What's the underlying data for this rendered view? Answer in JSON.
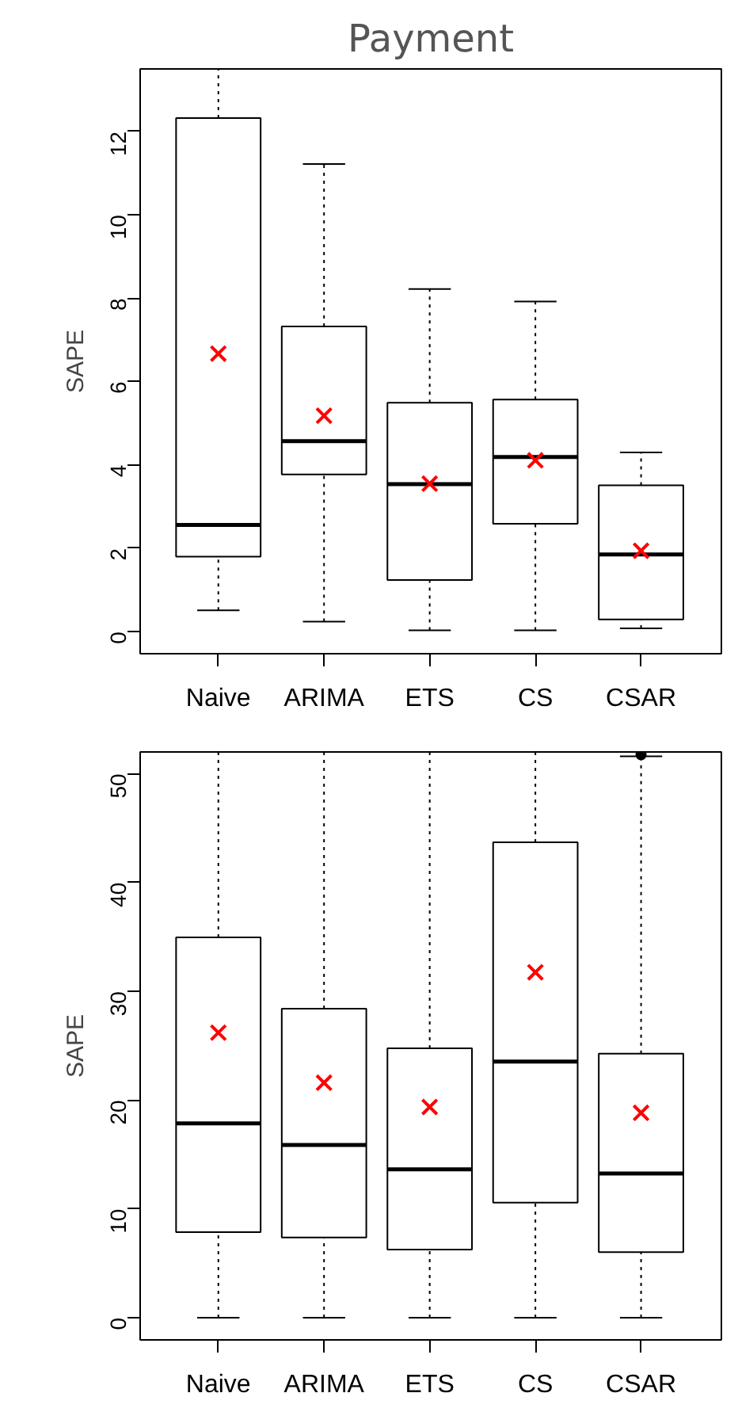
{
  "chart_data": [
    {
      "type": "box",
      "title": "Payment",
      "ylabel": "SAPE",
      "categories": [
        "Naive",
        "ARIMA",
        "ETS",
        "CS",
        "CSAR"
      ],
      "boxes": [
        {
          "low": 0.51,
          "q1": 1.8,
          "median": 2.56,
          "q3": 12.32,
          "high": 13.5,
          "mean": 6.67
        },
        {
          "low": 0.24,
          "q1": 3.77,
          "median": 4.57,
          "q3": 7.32,
          "high": 11.22,
          "mean": 5.18
        },
        {
          "low": 0.03,
          "q1": 1.24,
          "median": 3.54,
          "q3": 5.49,
          "high": 8.22,
          "mean": 3.55
        },
        {
          "low": 0.03,
          "q1": 2.59,
          "median": 4.19,
          "q3": 5.57,
          "high": 7.92,
          "mean": 4.11
        },
        {
          "low": 0.08,
          "q1": 0.29,
          "median": 1.85,
          "q3": 3.51,
          "high": 4.3,
          "mean": 1.94
        }
      ],
      "ylim": [
        -0.53,
        13.5
      ],
      "yticks": [
        0,
        2,
        4,
        6,
        8,
        10,
        12
      ],
      "grid": false
    },
    {
      "type": "box",
      "ylabel": "SAPE",
      "categories": [
        "Naive",
        "ARIMA",
        "ETS",
        "CS",
        "CSAR"
      ],
      "boxes": [
        {
          "low": 0,
          "q1": 7.86,
          "median": 17.86,
          "q3": 34.95,
          "high": 52,
          "mean": 26.2
        },
        {
          "low": 0,
          "q1": 7.38,
          "median": 15.87,
          "q3": 28.4,
          "high": 52,
          "mean": 21.6
        },
        {
          "low": 0,
          "q1": 6.26,
          "median": 13.64,
          "q3": 24.76,
          "high": 52,
          "mean": 19.37
        },
        {
          "low": 0,
          "q1": 10.58,
          "median": 23.54,
          "q3": 43.7,
          "high": 52,
          "mean": 31.75
        },
        {
          "low": 0,
          "q1": 6.02,
          "median": 13.25,
          "q3": 24.27,
          "high": 51.6,
          "mean": 18.83,
          "outliers": [
            51.75
          ]
        }
      ],
      "ylim": [
        -2.04,
        52
      ],
      "yticks": [
        0,
        10,
        20,
        30,
        40,
        50
      ],
      "grid": false
    }
  ]
}
